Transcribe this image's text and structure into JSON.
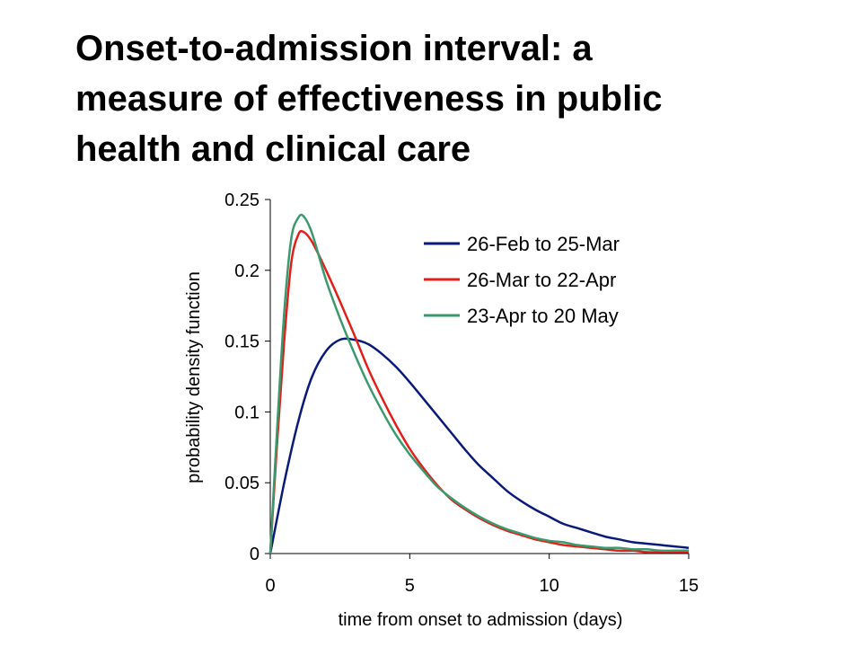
{
  "slide": {
    "title_lines": [
      "Onset-to-admission interval: a",
      "measure of effectiveness in public",
      "health and clinical care"
    ]
  },
  "chart_data": {
    "type": "line",
    "title": "",
    "xlabel": "time from onset to admission (days)",
    "ylabel": "probability density function",
    "xlim": [
      0,
      15
    ],
    "ylim": [
      0,
      0.25
    ],
    "xticks": [
      0,
      5,
      10,
      15
    ],
    "xtick_labels": [
      "0",
      "5",
      "10",
      "15"
    ],
    "yticks": [
      0,
      0.05,
      0.1,
      0.15,
      0.2,
      0.25
    ],
    "ytick_labels": [
      "0",
      "0.05",
      "0.1",
      "0.15",
      "0.2",
      "0.25"
    ],
    "grid": false,
    "legend_position": "top-right",
    "series": [
      {
        "name": "26-Feb to 25-Mar",
        "color": "#0a1a7a",
        "x": [
          0,
          0.5,
          1,
          1.5,
          2,
          2.5,
          3,
          3.5,
          4,
          4.5,
          5,
          5.5,
          6,
          6.5,
          7,
          7.5,
          8,
          8.5,
          9,
          9.5,
          10,
          10.5,
          11,
          11.5,
          12,
          12.5,
          13,
          13.5,
          14,
          14.5,
          15
        ],
        "y": [
          0,
          0.05,
          0.093,
          0.125,
          0.143,
          0.151,
          0.151,
          0.148,
          0.141,
          0.132,
          0.121,
          0.109,
          0.097,
          0.085,
          0.073,
          0.062,
          0.053,
          0.044,
          0.037,
          0.031,
          0.026,
          0.021,
          0.018,
          0.015,
          0.012,
          0.01,
          0.008,
          0.007,
          0.006,
          0.005,
          0.004
        ]
      },
      {
        "name": "26-Mar to 22-Apr",
        "color": "#e0201b",
        "x": [
          0,
          0.25,
          0.5,
          0.75,
          1,
          1.2,
          1.5,
          2,
          2.5,
          3,
          3.5,
          4,
          4.5,
          5,
          5.5,
          6,
          6.5,
          7,
          7.5,
          8,
          8.5,
          9,
          9.5,
          10,
          10.5,
          11,
          11.5,
          12,
          12.5,
          13,
          13.5,
          14,
          14.5,
          15
        ],
        "y": [
          0,
          0.08,
          0.15,
          0.205,
          0.225,
          0.227,
          0.22,
          0.2,
          0.178,
          0.155,
          0.131,
          0.11,
          0.091,
          0.074,
          0.06,
          0.048,
          0.038,
          0.031,
          0.025,
          0.02,
          0.016,
          0.013,
          0.01,
          0.008,
          0.006,
          0.005,
          0.004,
          0.003,
          0.002,
          0.002,
          0.001,
          0.001,
          0.001,
          0.001
        ]
      },
      {
        "name": "23-Apr to 20 May",
        "color": "#3a9a6e",
        "x": [
          0,
          0.25,
          0.5,
          0.75,
          1,
          1.2,
          1.5,
          2,
          2.5,
          3,
          3.5,
          4,
          4.5,
          5,
          5.5,
          6,
          6.5,
          7,
          7.5,
          8,
          8.5,
          9,
          9.5,
          10,
          10.5,
          11,
          11.5,
          12,
          12.5,
          13,
          13.5,
          14,
          14.5,
          15
        ],
        "y": [
          0,
          0.09,
          0.17,
          0.222,
          0.237,
          0.238,
          0.226,
          0.193,
          0.166,
          0.142,
          0.12,
          0.101,
          0.084,
          0.07,
          0.058,
          0.047,
          0.039,
          0.032,
          0.026,
          0.021,
          0.017,
          0.014,
          0.011,
          0.009,
          0.008,
          0.006,
          0.005,
          0.004,
          0.004,
          0.003,
          0.003,
          0.002,
          0.002,
          0.002
        ]
      }
    ]
  }
}
